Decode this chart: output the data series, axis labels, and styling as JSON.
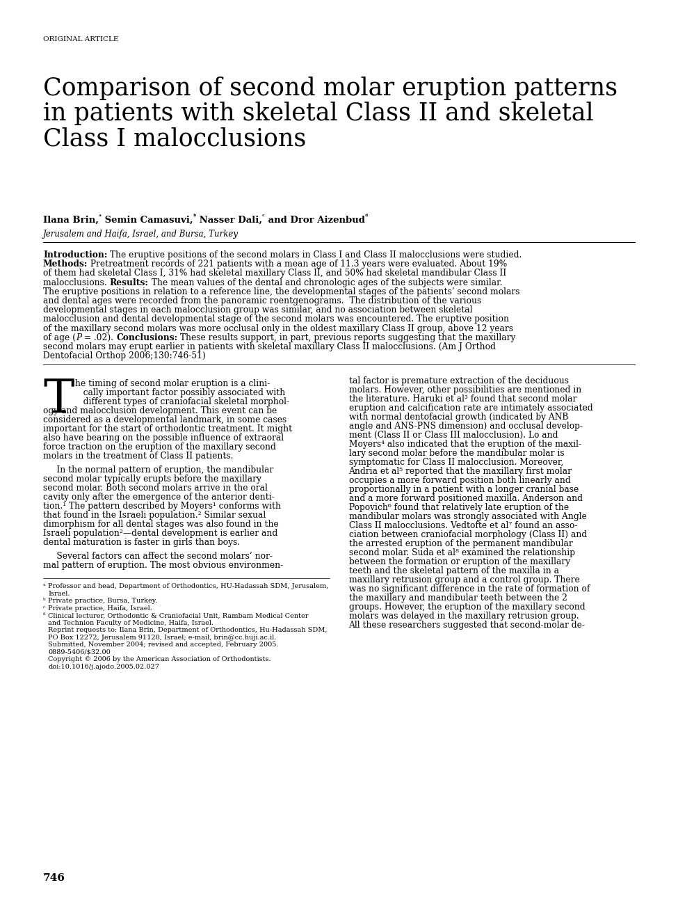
{
  "background_color": "#ffffff",
  "page_label": "ORIGINAL ARTICLE",
  "title_line1": "Comparison of second molar eruption patterns",
  "title_line2": "in patients with skeletal Class II and skeletal",
  "title_line3": "Class I malocclusions",
  "affiliation": "Jerusalem and Haifa, Israel, and Bursa, Turkey",
  "page_number": "746",
  "abs_lines": [
    [
      [
        "bold",
        "Introduction:"
      ],
      [
        "normal",
        " The eruptive positions of the second molars in Class I and Class II malocclusions were studied."
      ]
    ],
    [
      [
        "bold",
        "Methods:"
      ],
      [
        "normal",
        " Pretreatment records of 221 patients with a mean age of 11.3 years were evaluated. About 19%"
      ]
    ],
    [
      [
        "normal",
        "of them had skeletal Class I, 31% had skeletal maxillary Class II, and 50% had skeletal mandibular Class II"
      ]
    ],
    [
      [
        "normal",
        "malocclusions. "
      ],
      [
        "bold",
        "Results:"
      ],
      [
        "normal",
        " The mean values of the dental and chronologic ages of the subjects were similar."
      ]
    ],
    [
      [
        "normal",
        "The eruptive positions in relation to a reference line, the developmental stages of the patients’ second molars"
      ]
    ],
    [
      [
        "normal",
        "and dental ages were recorded from the panoramic roentgenograms.  The distribution of the various"
      ]
    ],
    [
      [
        "normal",
        "developmental stages in each malocclusion group was similar, and no association between skeletal"
      ]
    ],
    [
      [
        "normal",
        "malocclusion and dental developmental stage of the second molars was encountered. The eruptive position"
      ]
    ],
    [
      [
        "normal",
        "of the maxillary second molars was more occlusal only in the oldest maxillary Class II group, above 12 years"
      ]
    ],
    [
      [
        "normal",
        "of age ("
      ],
      [
        "italic",
        "P"
      ],
      [
        "normal",
        " = .02). "
      ],
      [
        "bold",
        "Conclusions:"
      ],
      [
        "normal",
        " These results support, in part, previous reports suggesting that the maxillary"
      ]
    ],
    [
      [
        "normal",
        "second molars may erupt earlier in patients with skeletal maxillary Class II malocclusions. (Am J Orthod"
      ]
    ],
    [
      [
        "normal",
        "Dentofacial Orthop 2006;130:746-51)"
      ]
    ]
  ],
  "col1_dropcap_lines": [
    "he timing of second molar eruption is a clini-",
    "   cally important factor possibly associated with",
    "   different types of craniofacial skeletal morphol-"
  ],
  "col1_para1_rest": [
    "ogy and malocclusion development. This event can be",
    "considered as a developmental landmark, in some cases",
    "important for the start of orthodontic treatment. It might",
    "also have bearing on the possible influence of extraoral",
    "force traction on the eruption of the maxillary second",
    "molars in the treatment of Class II patients."
  ],
  "col1_para2": [
    "     In the normal pattern of eruption, the mandibular",
    "second molar typically erupts before the maxillary",
    "second molar. Both second molars arrive in the oral",
    "cavity only after the emergence of the anterior denti-",
    "tion.¹ The pattern described by Moyers¹ conforms with",
    "that found in the Israeli population.² Similar sexual",
    "dimorphism for all dental stages was also found in the",
    "Israeli population²—dental development is earlier and",
    "dental maturation is faster in girls than boys."
  ],
  "col1_para3": [
    "     Several factors can affect the second molars’ nor-",
    "mal pattern of eruption. The most obvious environmen-"
  ],
  "footnotes": [
    [
      "ᵃ",
      "Professor and head, Department of Orthodontics, HU-Hadassah SDM, Jerusalem,"
    ],
    [
      "",
      "Israel."
    ],
    [
      "ᵇ",
      "Private practice, Bursa, Turkey."
    ],
    [
      "ᶜ",
      "Private practice, Haifa, Israel."
    ],
    [
      "ᵈ",
      "Clinical lecturer, Orthodontic & Craniofacial Unit, Rambam Medical Center"
    ],
    [
      "",
      "and Technion Faculty of Medicine, Haifa, Israel."
    ],
    [
      "",
      "Reprint requests to: Ilana Brin, Department of Orthodontics, Hu-Hadassah SDM,"
    ],
    [
      "",
      "PO Box 12272, Jerusalem 91120, Israel; e-mail, brin@cc.huji.ac.il."
    ],
    [
      "",
      "Submitted, November 2004; revised and accepted, February 2005."
    ],
    [
      "",
      "0889-5406/$32.00"
    ],
    [
      "",
      "Copyright © 2006 by the American Association of Orthodontists."
    ],
    [
      "",
      "doi:10.1016/j.ajodo.2005.02.027"
    ]
  ],
  "col2_lines": [
    "tal factor is premature extraction of the deciduous",
    "molars. However, other possibilities are mentioned in",
    "the literature. Haruki et al³ found that second molar",
    "eruption and calcification rate are intimately associated",
    "with normal dentofacial growth (indicated by ANB",
    "angle and ANS-PNS dimension) and occlusal develop-",
    "ment (Class II or Class III malocclusion). Lo and",
    "Moyers⁴ also indicated that the eruption of the maxil-",
    "lary second molar before the mandibular molar is",
    "symptomatic for Class II malocclusion. Moreover,",
    "Andria et al⁵ reported that the maxillary first molar",
    "occupies a more forward position both linearly and",
    "proportionally in a patient with a longer cranial base",
    "and a more forward positioned maxilla. Anderson and",
    "Popovich⁶ found that relatively late eruption of the",
    "mandibular molars was strongly associated with Angle",
    "Class II malocclusions. Vedtofte et al⁷ found an asso-",
    "ciation between craniofacial morphology (Class II) and",
    "the arrested eruption of the permanent mandibular",
    "second molar. Suda et al⁸ examined the relationship",
    "between the formation or eruption of the maxillary",
    "teeth and the skeletal pattern of the maxilla in a",
    "maxillary retrusion group and a control group. There",
    "was no significant difference in the rate of formation of",
    "the maxillary and mandibular teeth between the 2",
    "groups. However, the eruption of the maxillary second",
    "molars was delayed in the maxillary retrusion group.",
    "All these researchers suggested that second-molar de-"
  ]
}
